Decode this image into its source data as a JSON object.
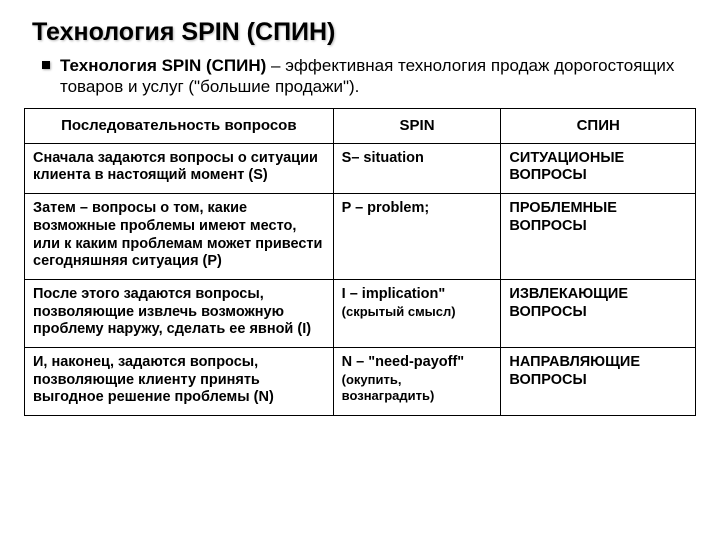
{
  "title": "Технология SPIN (СПИН)",
  "subtitle_strong": "Технология SPIN (СПИН)",
  "subtitle_rest": " – эффективная технология продаж дорогостоящих товаров и услуг (\"большие продажи\").",
  "table": {
    "type": "table",
    "columns": [
      "Последовательность вопросов",
      "SPIN",
      "СПИН"
    ],
    "col_widths_pct": [
      46,
      25,
      29
    ],
    "border_color": "#000000",
    "background_color": "#ffffff",
    "header_fontsize": 15,
    "cell_fontsize": 14.5,
    "rows": [
      {
        "seq": "Сначала задаются вопросы о ситуации клиента в настоящий момент (S)",
        "spin_main": "S– situation",
        "spin_sub": "",
        "ru_prefix": "С",
        "ru_rest": "ИТУАЦИОНЫЕ ВОПРОСЫ"
      },
      {
        "seq": "Затем – вопросы о том, какие возможные проблемы имеют место, или к каким проблемам может привести сегодняшняя ситуация (P)",
        "spin_main": "P – problem;",
        "spin_sub": "",
        "ru_prefix": "П",
        "ru_rest": "РОБЛЕМНЫЕ ВОПРОСЫ"
      },
      {
        "seq": "После этого задаются вопросы, позволяющие извлечь возможную проблему наружу, сделать ее явной (I)",
        "spin_main": "I – implication\"",
        "spin_sub": "(скрытый смысл)",
        "ru_prefix": "И",
        "ru_rest": "ЗВЛЕКАЮЩИЕ ВОПРОСЫ"
      },
      {
        "seq": "И, наконец, задаются вопросы, позволяющие клиенту принять выгодное решение  проблемы (N)",
        "spin_main": "N – \"need-payoff\"",
        "spin_sub": "(окупить, вознаградить)",
        "ru_prefix": "Н",
        "ru_rest": "АПРАВЛЯЮЩИЕ ВОПРОСЫ"
      }
    ]
  },
  "colors": {
    "text": "#000000",
    "background": "#ffffff",
    "border": "#000000"
  }
}
